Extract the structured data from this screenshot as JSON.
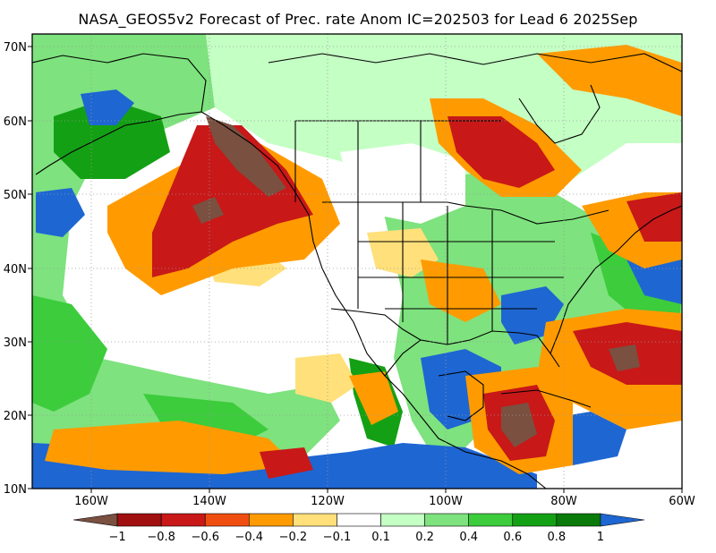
{
  "title": "NASA_GEOS5v2 Forecast of Prec. rate Anom IC=202503 for Lead 6 2025Sep",
  "map": {
    "region": "North America and Eastern Pacific",
    "lon_range": [
      -170,
      -60
    ],
    "lat_range": [
      10,
      71
    ],
    "projection": "lat-lon"
  },
  "axes": {
    "x_ticks": [
      "160W",
      "140W",
      "120W",
      "100W",
      "80W",
      "60W"
    ],
    "y_ticks": [
      "10N",
      "20N",
      "30N",
      "40N",
      "50N",
      "60N",
      "70N"
    ]
  },
  "colorbar": {
    "labels": [
      "−1",
      "−0.8",
      "−0.6",
      "−0.4",
      "−0.2",
      "−0.1",
      "0.1",
      "0.2",
      "0.4",
      "0.6",
      "0.8",
      "1"
    ],
    "colors": [
      "#7a5040",
      "#a01010",
      "#c81818",
      "#ef4e10",
      "#ff9b00",
      "#ffe07a",
      "#ffffff",
      "#c4ffc4",
      "#7ee27e",
      "#3ccc3c",
      "#14a014",
      "#0a7a0a",
      "#1e66d2"
    ]
  }
}
